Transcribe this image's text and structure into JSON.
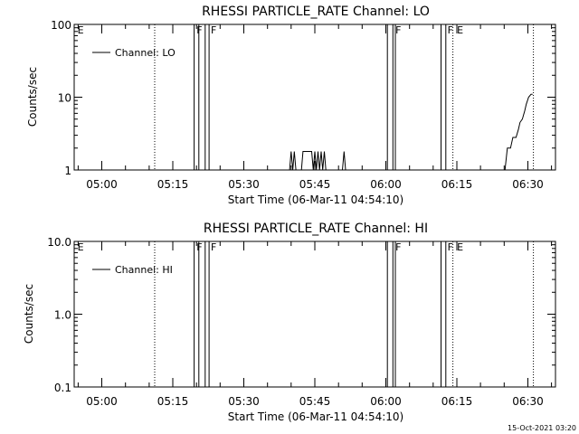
{
  "chart_data": [
    {
      "type": "line",
      "title": "RHESSI PARTICLE_RATE Channel: LO",
      "xlabel": "Start Time (06-Mar-11 04:54:10)",
      "ylabel": "Counts/sec",
      "yscale": "log",
      "ylim": [
        1,
        100
      ],
      "xlim": [
        "04:54:10",
        "06:35:50"
      ],
      "grid": false,
      "legend_position": "top-left",
      "x_ticks": [
        "05:00",
        "05:15",
        "05:30",
        "05:45",
        "06:00",
        "06:15",
        "06:30"
      ],
      "y_ticks": [
        "1",
        "10",
        "100"
      ],
      "flags": [
        {
          "label": "E",
          "time": "04:54:40"
        },
        {
          "label": "F",
          "time": "05:19:50"
        },
        {
          "label": "F",
          "time": "05:22:50"
        },
        {
          "label": "F",
          "time": "06:01:50"
        },
        {
          "label": "F",
          "time": "06:12:50"
        },
        {
          "label": "E",
          "time": "06:14:50"
        }
      ],
      "boundaries": [
        {
          "style": "dotted",
          "time": "05:11:10"
        },
        {
          "style": "solid",
          "time": "05:19:30"
        },
        {
          "style": "solid",
          "time": "05:20:30"
        },
        {
          "style": "solid",
          "time": "05:21:50"
        },
        {
          "style": "solid",
          "time": "05:22:40"
        },
        {
          "style": "solid",
          "time": "06:00:20"
        },
        {
          "style": "solid",
          "time": "06:01:30"
        },
        {
          "style": "solid",
          "time": "06:02:00"
        },
        {
          "style": "solid",
          "time": "06:11:40"
        },
        {
          "style": "solid",
          "time": "06:12:40"
        },
        {
          "style": "dotted",
          "time": "06:14:10"
        },
        {
          "style": "dotted",
          "time": "06:31:10"
        }
      ],
      "series": [
        {
          "name": "Channel: LO",
          "color": "#000000",
          "points": [
            [
              "05:39:40",
              1.0
            ],
            [
              "05:40:00",
              1.8
            ],
            [
              "05:40:20",
              1.0
            ],
            [
              "05:40:40",
              1.8
            ],
            [
              "05:41:00",
              1.0
            ],
            [
              "05:42:10",
              1.0
            ],
            [
              "05:42:30",
              1.8
            ],
            [
              "05:43:00",
              1.8
            ],
            [
              "05:44:00",
              1.8
            ],
            [
              "05:44:20",
              1.8
            ],
            [
              "05:44:40",
              1.0
            ],
            [
              "05:45:00",
              1.8
            ],
            [
              "05:45:20",
              1.0
            ],
            [
              "05:45:40",
              1.8
            ],
            [
              "05:46:00",
              1.0
            ],
            [
              "05:46:20",
              1.8
            ],
            [
              "05:46:40",
              1.0
            ],
            [
              "05:47:00",
              1.8
            ],
            [
              "05:47:20",
              1.0
            ],
            [
              "05:50:50",
              1.0
            ],
            [
              "05:51:10",
              1.8
            ],
            [
              "05:51:30",
              1.0
            ],
            [
              "06:25:10",
              1.0
            ],
            [
              "06:25:40",
              2.0
            ],
            [
              "06:26:20",
              2.0
            ],
            [
              "06:26:50",
              2.8
            ],
            [
              "06:27:30",
              2.8
            ],
            [
              "06:28:00",
              3.6
            ],
            [
              "06:28:20",
              4.5
            ],
            [
              "06:28:50",
              5.0
            ],
            [
              "06:29:20",
              6.5
            ],
            [
              "06:29:40",
              8.0
            ],
            [
              "06:30:10",
              10.0
            ],
            [
              "06:30:40",
              11.0
            ],
            [
              "06:31:00",
              11.0
            ]
          ]
        }
      ]
    },
    {
      "type": "line",
      "title": "RHESSI PARTICLE_RATE Channel: HI",
      "xlabel": "Start Time (06-Mar-11 04:54:10)",
      "ylabel": "Counts/sec",
      "yscale": "log",
      "ylim": [
        0.1,
        10
      ],
      "xlim": [
        "04:54:10",
        "06:35:50"
      ],
      "grid": false,
      "legend_position": "top-left",
      "x_ticks": [
        "05:00",
        "05:15",
        "05:30",
        "05:45",
        "06:00",
        "06:15",
        "06:30"
      ],
      "y_ticks": [
        "0.1",
        "1.0",
        "10.0"
      ],
      "flags": [
        {
          "label": "E",
          "time": "04:54:40"
        },
        {
          "label": "F",
          "time": "05:19:50"
        },
        {
          "label": "F",
          "time": "05:22:50"
        },
        {
          "label": "F",
          "time": "06:01:50"
        },
        {
          "label": "F",
          "time": "06:12:50"
        },
        {
          "label": "E",
          "time": "06:14:50"
        }
      ],
      "boundaries": [
        {
          "style": "dotted",
          "time": "05:11:10"
        },
        {
          "style": "solid",
          "time": "05:19:30"
        },
        {
          "style": "solid",
          "time": "05:20:30"
        },
        {
          "style": "solid",
          "time": "05:21:50"
        },
        {
          "style": "solid",
          "time": "05:22:40"
        },
        {
          "style": "solid",
          "time": "06:00:20"
        },
        {
          "style": "solid",
          "time": "06:01:30"
        },
        {
          "style": "solid",
          "time": "06:02:00"
        },
        {
          "style": "solid",
          "time": "06:11:40"
        },
        {
          "style": "solid",
          "time": "06:12:40"
        },
        {
          "style": "dotted",
          "time": "06:14:10"
        },
        {
          "style": "dotted",
          "time": "06:31:10"
        }
      ],
      "series": [
        {
          "name": "Channel: HI",
          "color": "#000000",
          "points": []
        }
      ]
    }
  ],
  "footer": {
    "timestamp": "15-Oct-2021 03:20"
  }
}
